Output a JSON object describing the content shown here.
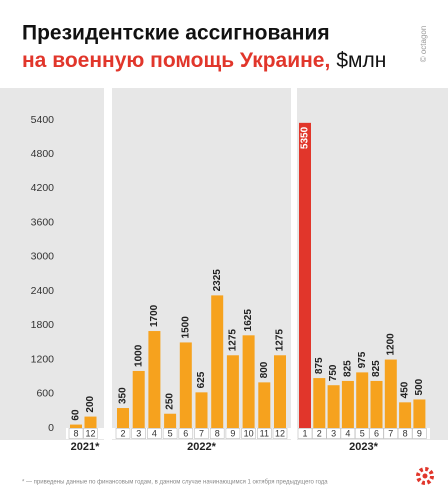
{
  "chart_data": {
    "type": "grouped_bar",
    "title_line1": "Президентские ассигнования",
    "title_line2": "на военную помощь Украине,",
    "title_unit": "$млн",
    "source": "© octagon",
    "footnote": "* — приведены данные по финансовым годам, в данном случае начинающимся 1 октября предыдущего года",
    "ylim": [
      0,
      5400
    ],
    "yticks": [
      0,
      600,
      1200,
      1800,
      2400,
      3000,
      3600,
      4200,
      4800,
      5400
    ],
    "groups": [
      {
        "name": "2021*",
        "categories": [
          "8",
          "12"
        ],
        "values": [
          60,
          200
        ],
        "colors": [
          "#f6a21e",
          "#f6a21e"
        ]
      },
      {
        "name": "2022*",
        "categories": [
          "2",
          "3",
          "4",
          "5",
          "6",
          "7",
          "8",
          "9",
          "10",
          "11",
          "12"
        ],
        "values": [
          350,
          1000,
          1700,
          250,
          1500,
          625,
          2325,
          1275,
          1625,
          800,
          1275
        ],
        "colors": [
          "#f6a21e",
          "#f6a21e",
          "#f6a21e",
          "#f6a21e",
          "#f6a21e",
          "#f6a21e",
          "#f6a21e",
          "#f6a21e",
          "#f6a21e",
          "#f6a21e",
          "#f6a21e"
        ]
      },
      {
        "name": "2023*",
        "categories": [
          "1",
          "2",
          "3",
          "4",
          "5",
          "6",
          "7",
          "8",
          "9"
        ],
        "values": [
          5350,
          875,
          750,
          825,
          975,
          825,
          1200,
          450,
          500
        ],
        "colors": [
          "#e1362b",
          "#f6a21e",
          "#f6a21e",
          "#f6a21e",
          "#f6a21e",
          "#f6a21e",
          "#f6a21e",
          "#f6a21e",
          "#f6a21e"
        ]
      }
    ]
  }
}
